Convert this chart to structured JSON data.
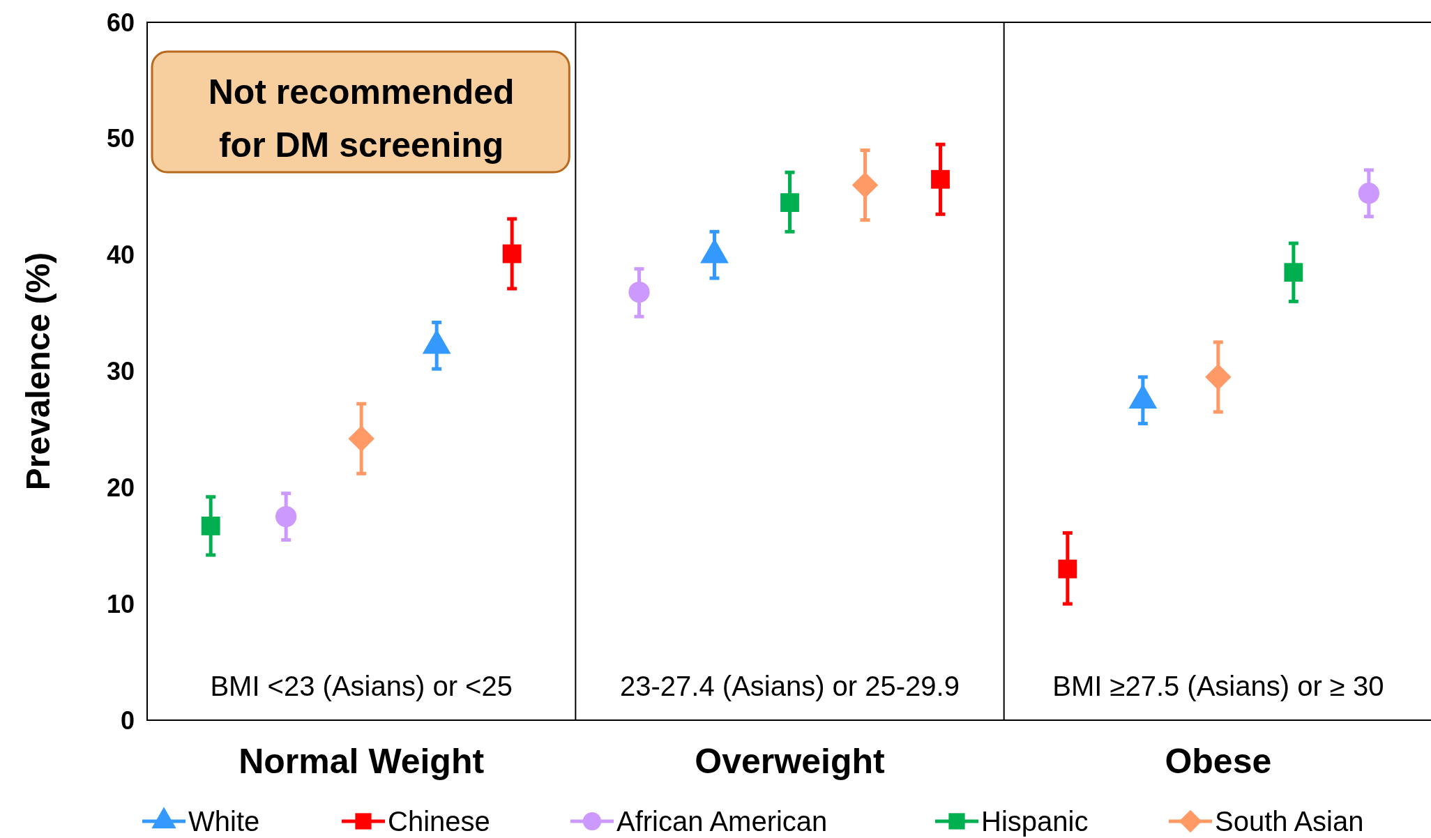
{
  "chart_data": {
    "type": "scatter",
    "ylabel": "Prevalence (%)",
    "categories": [
      "Normal Weight",
      "Overweight",
      "Obese"
    ],
    "ylim": [
      0,
      60
    ],
    "yticks": [
      0,
      10,
      20,
      30,
      40,
      50,
      60
    ],
    "grid": false,
    "legend": "bottom",
    "annotations": [
      "BMI <23 (Asians) or <25",
      "23-27.4 (Asians) or 25-29.9",
      "BMI ≥27.5 (Asians) or ≥ 30",
      "Not recommended for DM screening"
    ],
    "series": [
      {
        "name": "White",
        "color": "#3399ff",
        "marker": "triangle",
        "values": [
          32.2,
          40.0,
          27.5
        ],
        "errors": [
          [
            30.2,
            34.2
          ],
          [
            38.0,
            42.0
          ],
          [
            25.5,
            29.5
          ]
        ]
      },
      {
        "name": "Chinese",
        "color": "#ff0000",
        "marker": "square",
        "values": [
          40.1,
          46.5,
          13.0
        ],
        "errors": [
          [
            37.1,
            43.1
          ],
          [
            43.5,
            49.5
          ],
          [
            10.0,
            16.1
          ]
        ]
      },
      {
        "name": "African American",
        "color": "#cc99ff",
        "marker": "circle",
        "values": [
          17.5,
          36.8,
          45.3
        ],
        "errors": [
          [
            15.5,
            19.5
          ],
          [
            34.7,
            38.8
          ],
          [
            43.3,
            47.3
          ]
        ]
      },
      {
        "name": "Hispanic",
        "color": "#00b050",
        "marker": "square",
        "values": [
          16.7,
          44.5,
          38.5
        ],
        "errors": [
          [
            14.2,
            19.2
          ],
          [
            42.0,
            47.1
          ],
          [
            36.0,
            41.0
          ]
        ]
      },
      {
        "name": "South Asian",
        "color": "#ff9966",
        "marker": "diamond",
        "values": [
          24.2,
          46.0,
          29.5
        ],
        "errors": [
          [
            21.2,
            27.2
          ],
          [
            43.0,
            49.0
          ],
          [
            26.5,
            32.5
          ]
        ]
      }
    ]
  }
}
